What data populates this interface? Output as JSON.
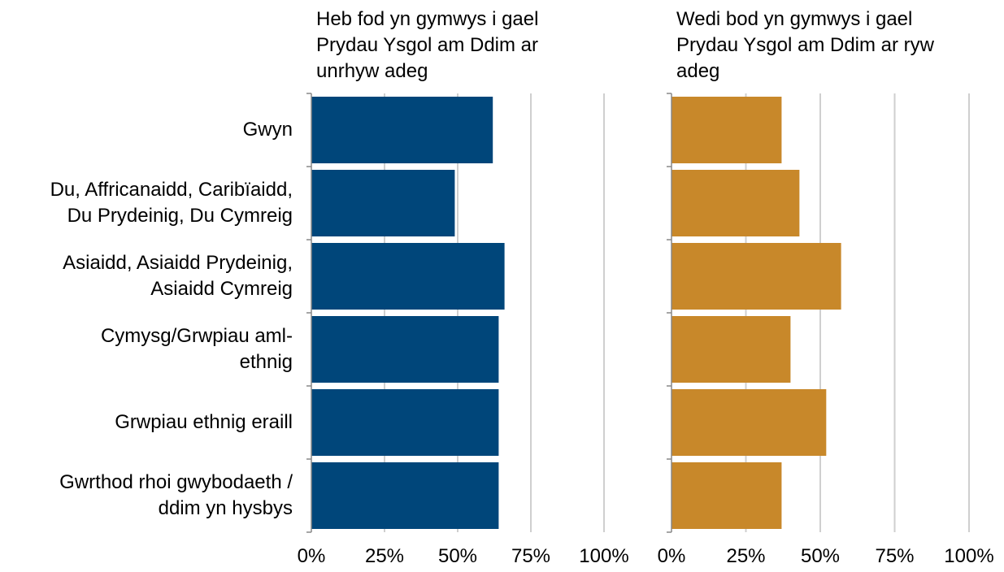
{
  "chart_data": [
    {
      "type": "bar",
      "orientation": "horizontal",
      "title": "Heb fod yn gymwys  i gael\nPrydau Ysgol am Ddim ar\nunrhyw  adeg",
      "categories": [
        "Gwyn",
        "Du, Affricanaidd, Caribïaidd,\nDu Prydeinig, Du Cymreig",
        "Asiaidd, Asiaidd Prydeinig,\nAsiaidd Cymreig",
        "Cymysg/Grwpiau aml-\nethnig",
        "Grwpiau ethnig eraill",
        "Gwrthod rhoi gwybodaeth /\nddim yn hysbys"
      ],
      "values": [
        62,
        49,
        66,
        64,
        64,
        64
      ],
      "color": "#00467a",
      "xlim": [
        0,
        100
      ],
      "xticks": [
        {
          "value": 0,
          "label": "0%"
        },
        {
          "value": 25,
          "label": "25%"
        },
        {
          "value": 50,
          "label": "50%"
        },
        {
          "value": 75,
          "label": "75%"
        },
        {
          "value": 100,
          "label": "100%"
        }
      ],
      "grid": true
    },
    {
      "type": "bar",
      "orientation": "horizontal",
      "title": "Wedi bod yn gymwys  i gael\nPrydau Ysgol am Ddim ar ryw\nadeg",
      "values": [
        37,
        43,
        57,
        40,
        52,
        37
      ],
      "color": "#c8882a",
      "xlim": [
        0,
        100
      ],
      "xticks": [
        {
          "value": 0,
          "label": "0%"
        },
        {
          "value": 25,
          "label": "25%"
        },
        {
          "value": 50,
          "label": "50%"
        },
        {
          "value": 75,
          "label": "75%"
        },
        {
          "value": 100,
          "label": "100%"
        }
      ],
      "grid": true
    }
  ]
}
